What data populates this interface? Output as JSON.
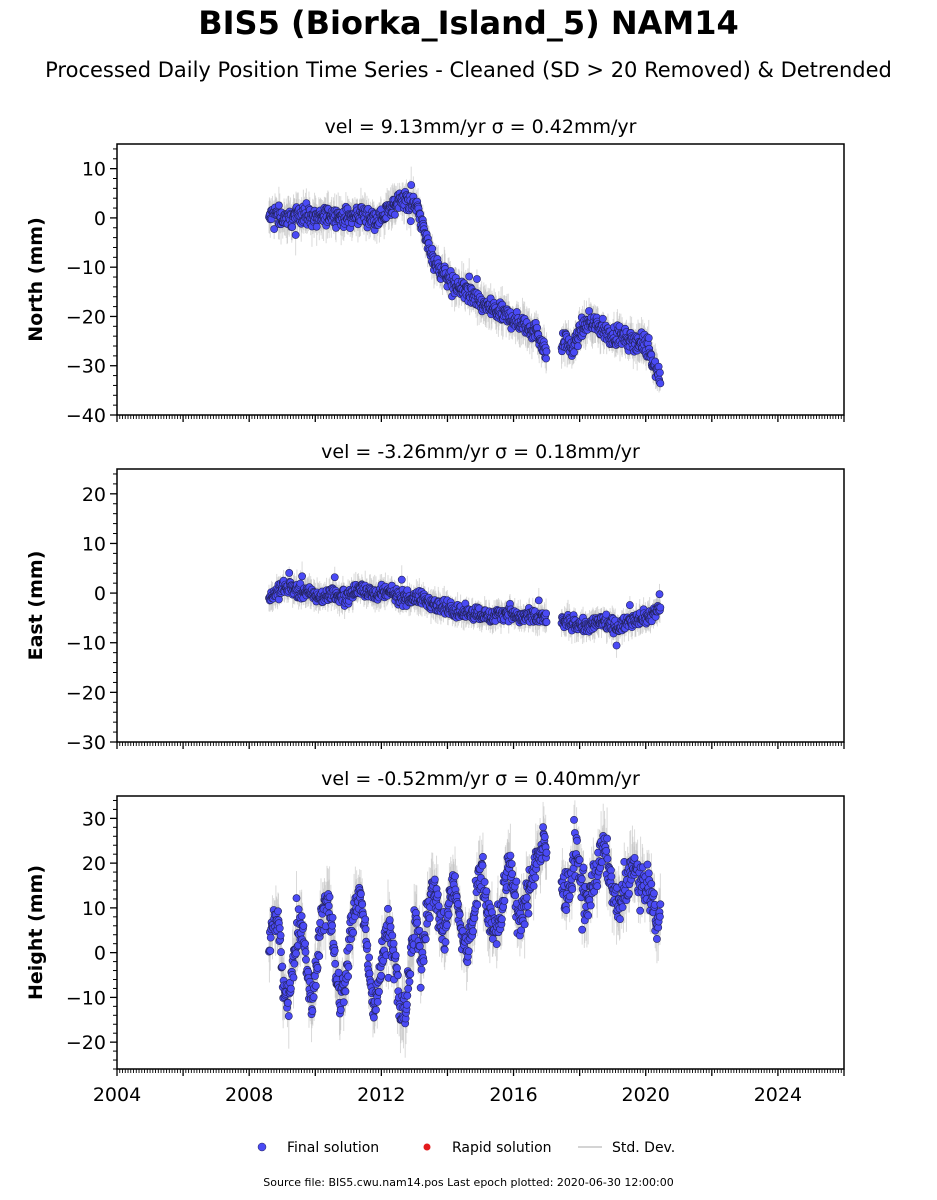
{
  "title": "BIS5 (Biorka_Island_5) NAM14",
  "subtitle": "Processed Daily Position Time Series - Cleaned (SD > 20 Removed) & Detrended",
  "footer": "Source file: BIS5.cwu.nam14.pos  Last epoch plotted: 2020-06-30 12:00:00",
  "colors": {
    "final": "#4a4af5",
    "rapid": "#e31a1c",
    "stddev": "#bbbbbb",
    "edge": "#222255"
  },
  "legend": [
    {
      "label": "Final solution",
      "marker": "dot",
      "color": "#4a4af5"
    },
    {
      "label": "Rapid solution",
      "marker": "dot",
      "color": "#e31a1c"
    },
    {
      "label": "Std. Dev.",
      "marker": "line",
      "color": "#bbbbbb"
    }
  ],
  "chart_data": [
    {
      "type": "scatter",
      "title": "vel = 9.13mm/yr   σ = 0.42mm/yr",
      "ylabel": "North (mm)",
      "xlim": [
        2004.0,
        2026.0
      ],
      "ylim": [
        -40,
        15
      ],
      "yticks": [
        "10",
        "0",
        "−10",
        "−20",
        "−30",
        "−40"
      ],
      "xticks": [],
      "series": [
        {
          "x": [
            2008.6,
            2008.8,
            2009.0,
            2009.3,
            2009.6,
            2009.9,
            2010.2,
            2010.5,
            2010.8,
            2011.1,
            2011.4,
            2011.7,
            2012.0,
            2012.3,
            2012.6,
            2012.9,
            2013.1,
            2013.3,
            2013.5,
            2013.7,
            2014.0,
            2014.3,
            2014.6,
            2014.9,
            2015.2,
            2015.5,
            2015.8,
            2016.1,
            2016.4,
            2016.7,
            2016.95,
            2017.6,
            2017.8,
            2018.0,
            2018.3,
            2018.6,
            2018.9,
            2019.2,
            2019.5,
            2019.8,
            2020.1,
            2020.3,
            2020.45
          ],
          "y": [
            0,
            1,
            0,
            0,
            1,
            0,
            0,
            1,
            0,
            0,
            1,
            0,
            0,
            2,
            4,
            3,
            2,
            -3,
            -7,
            -10,
            -12,
            -14,
            -15,
            -17,
            -18,
            -19,
            -20,
            -21,
            -22,
            -23,
            -27,
            -25,
            -27,
            -23,
            -21,
            -22,
            -24,
            -24,
            -25,
            -25,
            -27,
            -30,
            -33
          ]
        }
      ]
    },
    {
      "type": "scatter",
      "title": "vel = -3.26mm/yr   σ = 0.18mm/yr",
      "ylabel": "East (mm)",
      "xlim": [
        2004.0,
        2026.0
      ],
      "ylim": [
        -30,
        25
      ],
      "yticks": [
        "20",
        "10",
        "0",
        "−10",
        "−20",
        "−30"
      ],
      "xticks": [],
      "series": [
        {
          "x": [
            2008.6,
            2008.8,
            2009.0,
            2009.3,
            2009.6,
            2009.9,
            2010.2,
            2010.5,
            2010.8,
            2011.1,
            2011.4,
            2011.7,
            2012.0,
            2012.3,
            2012.6,
            2012.9,
            2013.2,
            2013.5,
            2013.8,
            2014.1,
            2014.4,
            2014.7,
            2015.0,
            2015.3,
            2015.6,
            2015.9,
            2016.2,
            2016.5,
            2016.8,
            2016.95,
            2017.6,
            2017.9,
            2018.2,
            2018.5,
            2018.8,
            2019.1,
            2019.4,
            2019.7,
            2020.0,
            2020.25,
            2020.45
          ],
          "y": [
            -1,
            0,
            1,
            1,
            0,
            0,
            -1,
            0,
            -1,
            0,
            1,
            0,
            0,
            0,
            -1,
            -1,
            -1,
            -2,
            -3,
            -3,
            -4,
            -4,
            -4,
            -5,
            -4,
            -4,
            -5,
            -5,
            -5,
            -5,
            -6,
            -6,
            -7,
            -6,
            -6,
            -7,
            -6,
            -5,
            -5,
            -4,
            -3
          ]
        }
      ]
    },
    {
      "type": "scatter",
      "title": "vel = -0.52mm/yr   σ = 0.40mm/yr",
      "ylabel": "Height (mm)",
      "xlim": [
        2004.0,
        2026.0
      ],
      "ylim": [
        -26,
        35
      ],
      "yticks": [
        "30",
        "20",
        "10",
        "0",
        "−10",
        "−20"
      ],
      "xticks": [
        "2004",
        "2008",
        "2012",
        "2016",
        "2020",
        "2024"
      ],
      "series": [
        {
          "x": [
            2008.6,
            2008.75,
            2008.9,
            2009.05,
            2009.2,
            2009.4,
            2009.6,
            2009.75,
            2009.9,
            2010.05,
            2010.2,
            2010.4,
            2010.6,
            2010.75,
            2010.9,
            2011.05,
            2011.2,
            2011.4,
            2011.6,
            2011.75,
            2011.9,
            2012.05,
            2012.2,
            2012.4,
            2012.6,
            2012.75,
            2012.9,
            2013.05,
            2013.2,
            2013.4,
            2013.6,
            2013.75,
            2013.9,
            2014.05,
            2014.2,
            2014.4,
            2014.6,
            2014.75,
            2014.9,
            2015.05,
            2015.2,
            2015.4,
            2015.6,
            2015.75,
            2015.9,
            2016.05,
            2016.2,
            2016.4,
            2016.6,
            2016.75,
            2016.95,
            2017.6,
            2017.75,
            2017.9,
            2018.05,
            2018.2,
            2018.4,
            2018.6,
            2018.75,
            2018.9,
            2019.05,
            2019.2,
            2019.4,
            2019.6,
            2019.75,
            2019.9,
            2020.05,
            2020.2,
            2020.35,
            2020.45
          ],
          "y": [
            0,
            8,
            5,
            -8,
            -12,
            2,
            8,
            -5,
            -12,
            -3,
            9,
            11,
            -2,
            -10,
            -8,
            4,
            10,
            12,
            -1,
            -11,
            -9,
            0,
            7,
            -2,
            -14,
            -12,
            -1,
            8,
            -4,
            10,
            15,
            8,
            3,
            12,
            16,
            5,
            0,
            6,
            14,
            18,
            10,
            4,
            8,
            16,
            20,
            12,
            6,
            12,
            18,
            22,
            24,
            12,
            18,
            22,
            16,
            10,
            15,
            20,
            24,
            18,
            12,
            10,
            14,
            20,
            17,
            14,
            16,
            12,
            5,
            10
          ]
        }
      ]
    }
  ]
}
